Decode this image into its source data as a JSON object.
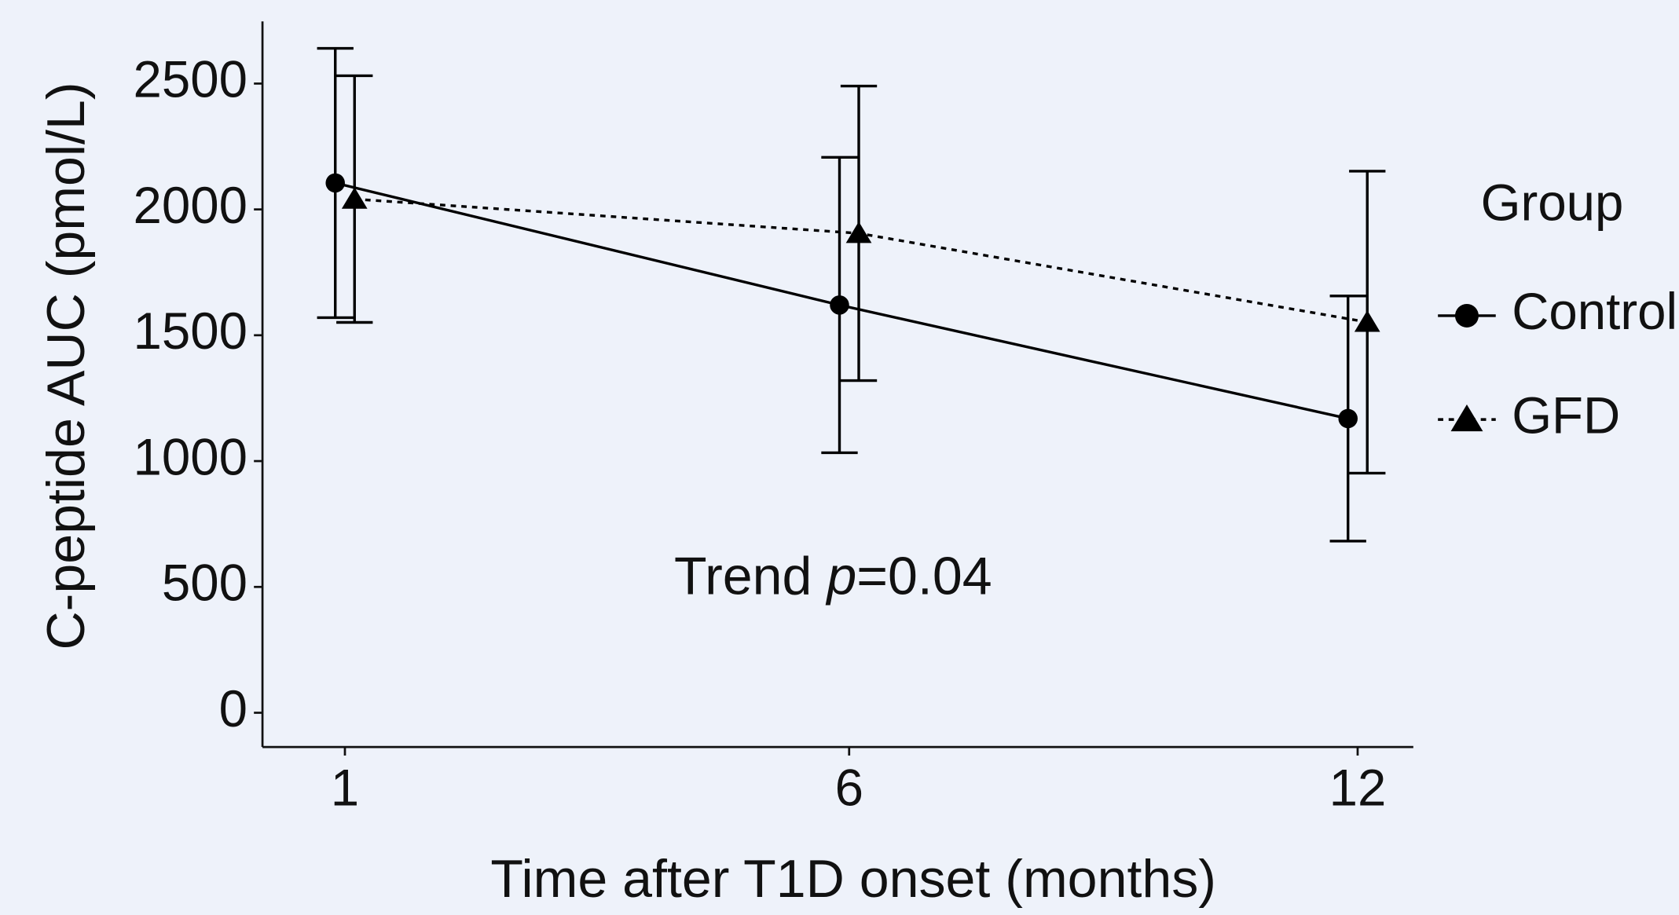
{
  "chart_data": {
    "type": "line",
    "x_label": "Time after T1D onset (months)",
    "y_label": "C-peptide AUC (pmol/L)",
    "categories": [
      "1",
      "6",
      "12"
    ],
    "series": [
      {
        "name": "Control",
        "color": "#000000",
        "linestyle": "solid",
        "marker": "circle",
        "values": [
          2105,
          1620,
          1169
        ],
        "errors": [
          535,
          587,
          487
        ]
      },
      {
        "name": "GFD",
        "color": "#000000",
        "linestyle": "dashed",
        "marker": "triangle",
        "values": [
          2041,
          1905,
          1552
        ],
        "errors": [
          490,
          585,
          600
        ]
      }
    ],
    "ylim": [
      -136,
      2747
    ],
    "yticks": [
      0,
      500,
      1000,
      1500,
      2000,
      2500
    ],
    "legend_title": "Group",
    "legend_position": "right",
    "annotation": [
      "Trend ",
      "p",
      "=0.04"
    ]
  }
}
